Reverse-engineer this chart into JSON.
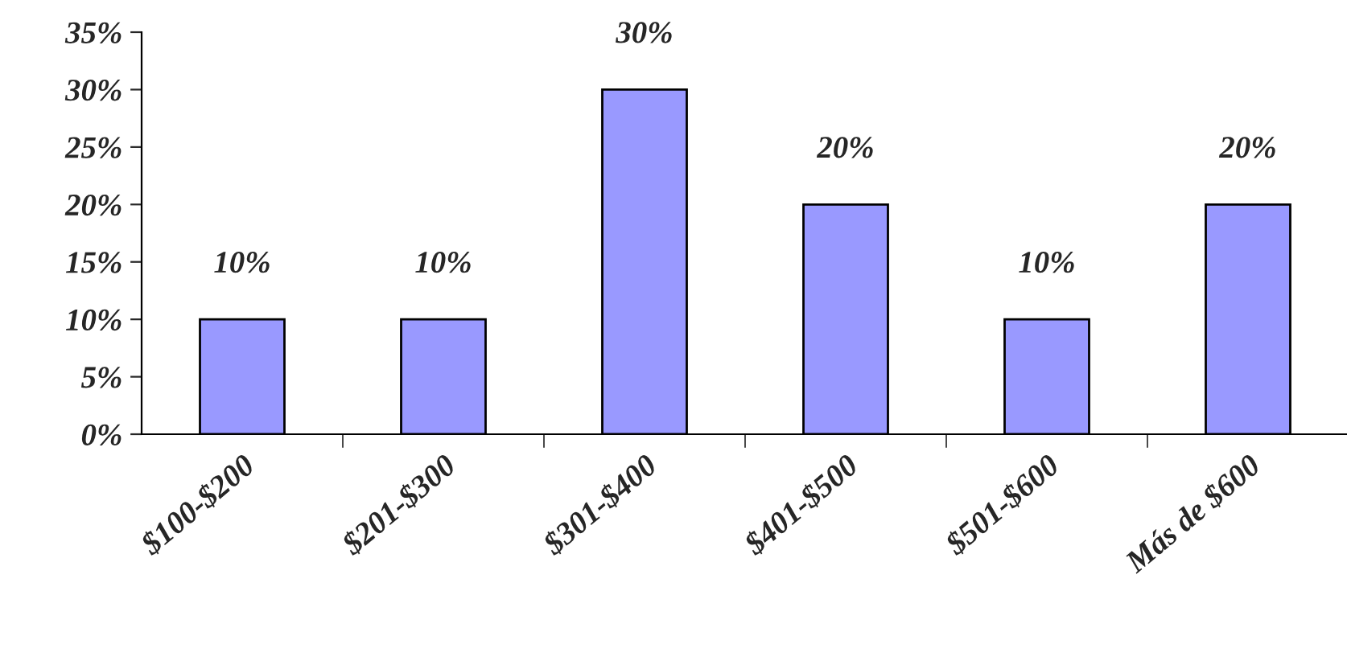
{
  "chart_data": {
    "type": "bar",
    "categories": [
      "$100-$200",
      "$201-$300",
      "$301-$400",
      "$401-$500",
      "$501-$600",
      "Más de $600"
    ],
    "values": [
      10,
      10,
      30,
      20,
      10,
      20
    ],
    "value_labels": [
      "10%",
      "10%",
      "30%",
      "20%",
      "10%",
      "20%"
    ],
    "color": "#9999ff",
    "ylim": [
      0,
      35
    ],
    "yticks": [
      {
        "value": 0,
        "label": "0%"
      },
      {
        "value": 5,
        "label": "5%"
      },
      {
        "value": 10,
        "label": "10%"
      },
      {
        "value": 15,
        "label": "15%"
      },
      {
        "value": 20,
        "label": "20%"
      },
      {
        "value": 25,
        "label": "25%"
      },
      {
        "value": 30,
        "label": "30%"
      },
      {
        "value": 35,
        "label": "35%"
      }
    ],
    "grid": false,
    "legend": false
  }
}
